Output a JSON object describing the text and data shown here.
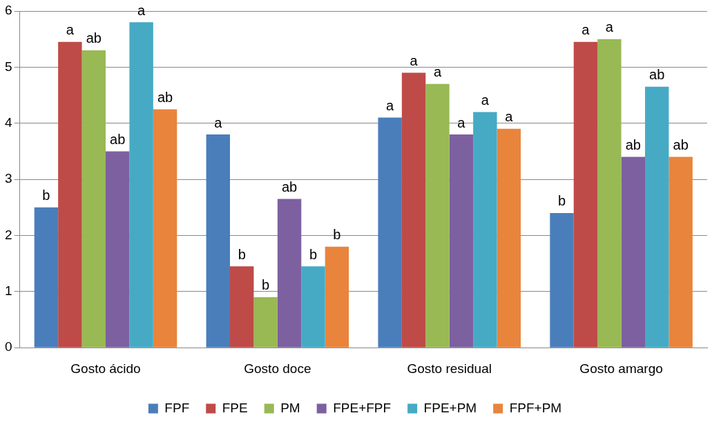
{
  "chart_data": {
    "type": "bar",
    "categories": [
      "Gosto ácido",
      "Gosto doce",
      "Gosto residual",
      "Gosto amargo"
    ],
    "series": [
      {
        "name": "FPF",
        "color": "#4a7ebb",
        "values": [
          2.5,
          3.8,
          4.1,
          2.4
        ],
        "value_labels": [
          "b",
          "a",
          "a",
          "b"
        ]
      },
      {
        "name": "FPE",
        "color": "#be4b48",
        "values": [
          5.45,
          1.45,
          4.9,
          5.45
        ],
        "value_labels": [
          "a",
          "b",
          "a",
          "a"
        ]
      },
      {
        "name": "PM",
        "color": "#98b954",
        "values": [
          5.3,
          0.9,
          4.7,
          5.5
        ],
        "value_labels": [
          "ab",
          "b",
          "a",
          "a"
        ]
      },
      {
        "name": "FPE+FPF",
        "color": "#7d60a0",
        "values": [
          3.5,
          2.65,
          3.8,
          3.4
        ],
        "value_labels": [
          "ab",
          "ab",
          "a",
          "ab"
        ]
      },
      {
        "name": "FPE+PM",
        "color": "#46aac5",
        "values": [
          5.8,
          1.45,
          4.2,
          4.65
        ],
        "value_labels": [
          "a",
          "b",
          "a",
          "ab"
        ]
      },
      {
        "name": "FPF+PM",
        "color": "#e9843c",
        "values": [
          4.25,
          1.8,
          3.9,
          3.4
        ],
        "value_labels": [
          "ab",
          "b",
          "a",
          "ab"
        ]
      }
    ],
    "ylim": [
      0,
      6
    ],
    "yticks": [
      0,
      1,
      2,
      3,
      4,
      5,
      6
    ],
    "grid": "y",
    "legend": "bottom"
  }
}
